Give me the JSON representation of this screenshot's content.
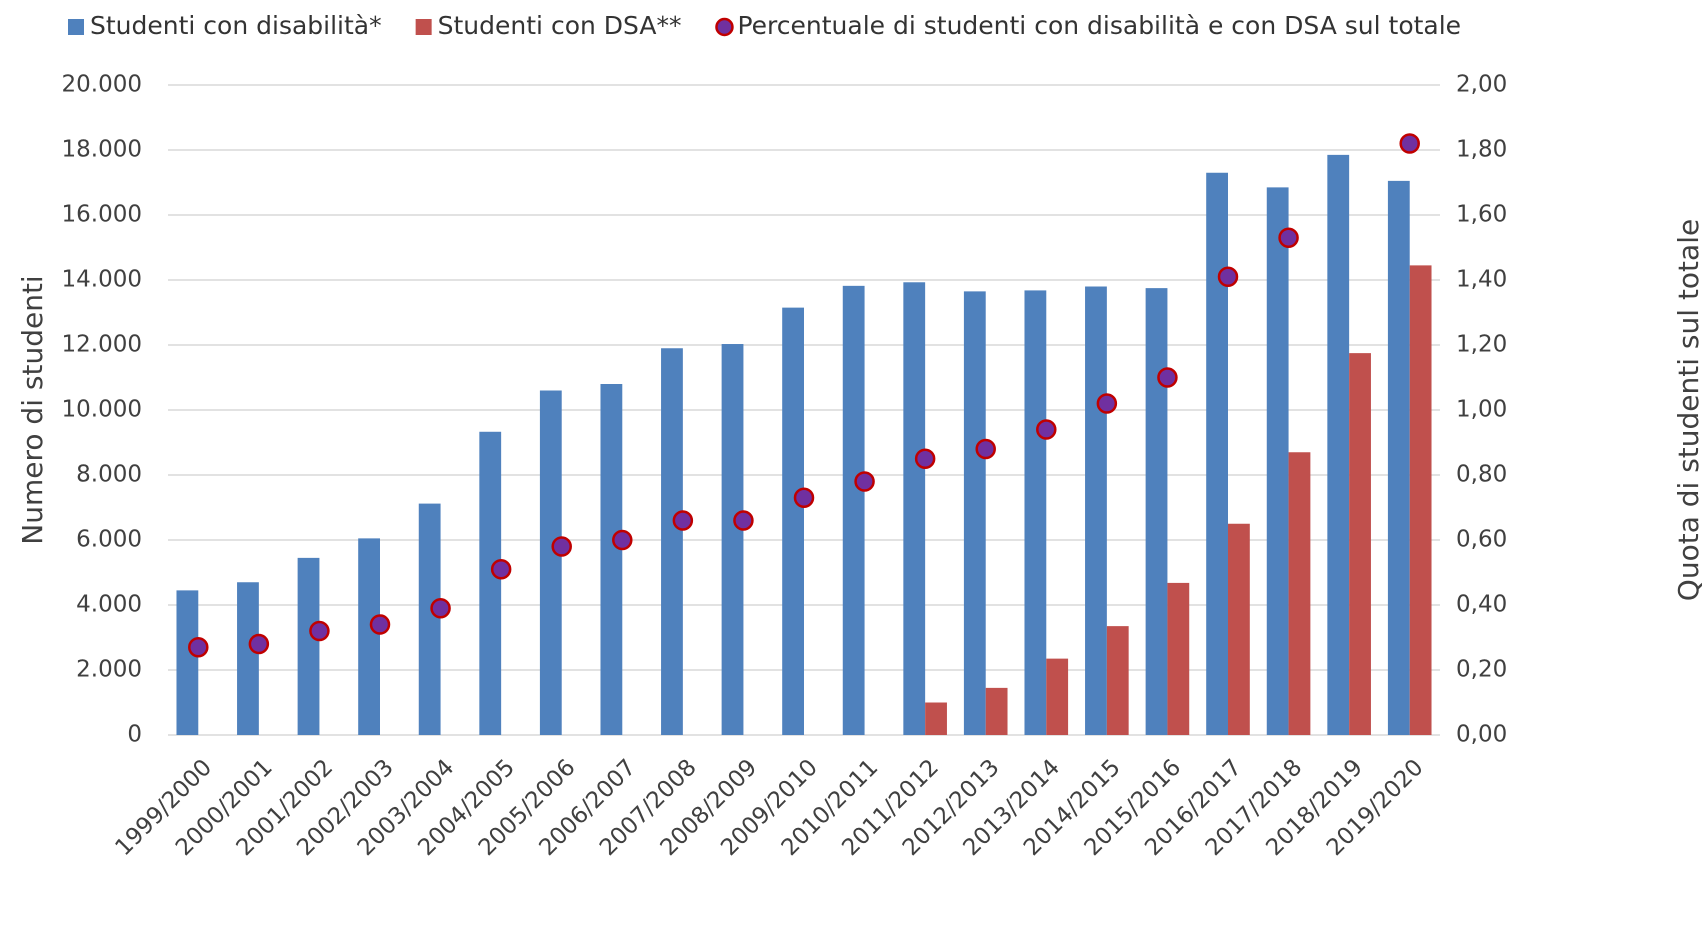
{
  "chart_data": {
    "type": "bar",
    "categories": [
      "1999/2000",
      "2000/2001",
      "2001/2002",
      "2002/2003",
      "2003/2004",
      "2004/2005",
      "2005/2006",
      "2006/2007",
      "2007/2008",
      "2008/2009",
      "2009/2010",
      "2010/2011",
      "2011/2012",
      "2012/2013",
      "2013/2014",
      "2014/2015",
      "2015/2016",
      "2016/2017",
      "2017/2018",
      "2018/2019",
      "2019/2020"
    ],
    "series": [
      {
        "name": "Studenti con disabilità*",
        "color": "#4f81bd",
        "type": "bar",
        "values": [
          4450,
          4700,
          5450,
          6050,
          7120,
          9330,
          10600,
          10800,
          11900,
          12030,
          13150,
          13820,
          13930,
          13650,
          13680,
          13800,
          13750,
          17300,
          16850,
          17850,
          17050
        ]
      },
      {
        "name": "Studenti con DSA**",
        "color": "#c0504d",
        "type": "bar",
        "values": [
          null,
          null,
          null,
          null,
          null,
          null,
          null,
          null,
          null,
          null,
          null,
          null,
          1000,
          1450,
          2350,
          3350,
          4680,
          6500,
          8700,
          11750,
          14450
        ]
      },
      {
        "name": "Percentuale di studenti con disabilità e con DSA sul totale",
        "color": "#7030a0",
        "edge_color": "#c00000",
        "type": "scatter",
        "axis": "y2",
        "values": [
          0.27,
          0.28,
          0.32,
          0.34,
          0.39,
          0.51,
          0.58,
          0.6,
          0.66,
          0.66,
          0.73,
          0.78,
          0.85,
          0.88,
          0.94,
          1.02,
          1.1,
          1.41,
          1.53,
          null,
          1.82
        ]
      }
    ],
    "y_label": "Numero di studenti",
    "y2_label": "Quota di studenti sul totale",
    "ylim": [
      0,
      20000
    ],
    "yticks": [
      0,
      {
        "value": 2000,
        "label": "2.000"
      },
      {
        "value": 4000,
        "label": "4.000"
      },
      {
        "value": 6000,
        "label": "6.000"
      },
      {
        "value": 8000,
        "label": "8.000"
      },
      {
        "value": 10000,
        "label": "10.000"
      },
      {
        "value": 12000,
        "label": "12.000"
      },
      {
        "value": 14000,
        "label": "14.000"
      },
      {
        "value": 16000,
        "label": "16.000"
      },
      {
        "value": 18000,
        "label": "18.000"
      },
      {
        "value": 20000,
        "label": "20.000"
      }
    ],
    "y2lim": [
      0,
      2
    ],
    "y2ticks": [
      {
        "value": 0,
        "label": "0,00"
      },
      {
        "value": 0.2,
        "label": "0,20"
      },
      {
        "value": 0.4,
        "label": "0,40"
      },
      {
        "value": 0.6,
        "label": "0,60"
      },
      {
        "value": 0.8,
        "label": "0,80"
      },
      {
        "value": 1,
        "label": "1,00"
      },
      {
        "value": 1.2,
        "label": "1,20"
      },
      {
        "value": 1.4,
        "label": "1,40"
      },
      {
        "value": 1.6,
        "label": "1,60"
      },
      {
        "value": 1.8,
        "label": "1,80"
      },
      {
        "value": 2,
        "label": "2,00"
      }
    ],
    "grid": true,
    "legend": "top"
  }
}
